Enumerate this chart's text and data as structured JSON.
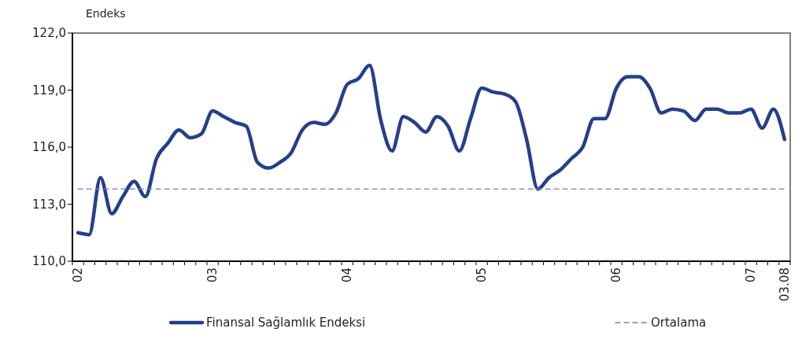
{
  "chart_data": {
    "type": "line",
    "ylabel": "Endeks",
    "categories": [
      "02",
      null,
      null,
      null,
      null,
      null,
      null,
      null,
      null,
      null,
      null,
      null,
      "03",
      null,
      null,
      null,
      null,
      null,
      null,
      null,
      null,
      null,
      null,
      null,
      "04",
      null,
      null,
      null,
      null,
      null,
      null,
      null,
      null,
      null,
      null,
      null,
      "05",
      null,
      null,
      null,
      null,
      null,
      null,
      null,
      null,
      null,
      null,
      null,
      "06",
      null,
      null,
      null,
      null,
      null,
      null,
      null,
      null,
      null,
      null,
      null,
      "07",
      null,
      null,
      "03.08"
    ],
    "series": [
      {
        "name": "Finansal Sağlamlık Endeksi",
        "color": "#253f8c",
        "line_style": "solid",
        "values": [
          111.5,
          111.4,
          114.4,
          112.5,
          113.4,
          114.2,
          113.4,
          115.4,
          116.2,
          116.9,
          116.5,
          116.7,
          117.9,
          117.6,
          117.3,
          117.1,
          115.2,
          114.9,
          115.2,
          115.7,
          116.9,
          117.3,
          117.2,
          117.8,
          119.3,
          119.6,
          120.3,
          117.4,
          115.8,
          117.6,
          117.3,
          116.8,
          117.6,
          117.1,
          115.8,
          117.5,
          119.1,
          118.9,
          118.8,
          118.4,
          116.4,
          113.8,
          114.4,
          114.8,
          115.4,
          116.0,
          117.5,
          117.5,
          119.1,
          119.7,
          119.7,
          119.1,
          117.8,
          118.0,
          117.9,
          117.4,
          118.0,
          118.0,
          117.8,
          117.8,
          118.0,
          117.0,
          118.0,
          116.4
        ]
      },
      {
        "name": "Ortalama",
        "color": "#6f7fc0",
        "line_style": "dashed",
        "values": [
          113.8,
          113.8,
          113.8,
          113.8,
          113.8,
          113.8,
          113.8,
          113.8,
          113.8,
          113.8,
          113.8,
          113.8,
          113.8,
          113.8,
          113.8,
          113.8,
          113.8,
          113.8,
          113.8,
          113.8,
          113.8,
          113.8,
          113.8,
          113.8,
          113.8,
          113.8,
          113.8,
          113.8,
          113.8,
          113.8,
          113.8,
          113.8,
          113.8,
          113.8,
          113.8,
          113.8,
          113.8,
          113.8,
          113.8,
          113.8,
          113.8,
          113.8,
          113.8,
          113.8,
          113.8,
          113.8,
          113.8,
          113.8,
          113.8,
          113.8,
          113.8,
          113.8,
          113.8,
          113.8,
          113.8,
          113.8,
          113.8,
          113.8,
          113.8,
          113.8,
          113.8,
          113.8,
          113.8,
          113.8
        ]
      }
    ],
    "ylim": [
      110,
      122
    ],
    "yticks": [
      {
        "value": 110,
        "label": "110,0"
      },
      {
        "value": 113,
        "label": "113,0"
      },
      {
        "value": 116,
        "label": "116,0"
      },
      {
        "value": 119,
        "label": "119,0"
      },
      {
        "value": 122,
        "label": "122,0"
      }
    ],
    "grid": false,
    "legend": "bottom",
    "marker": "none"
  }
}
